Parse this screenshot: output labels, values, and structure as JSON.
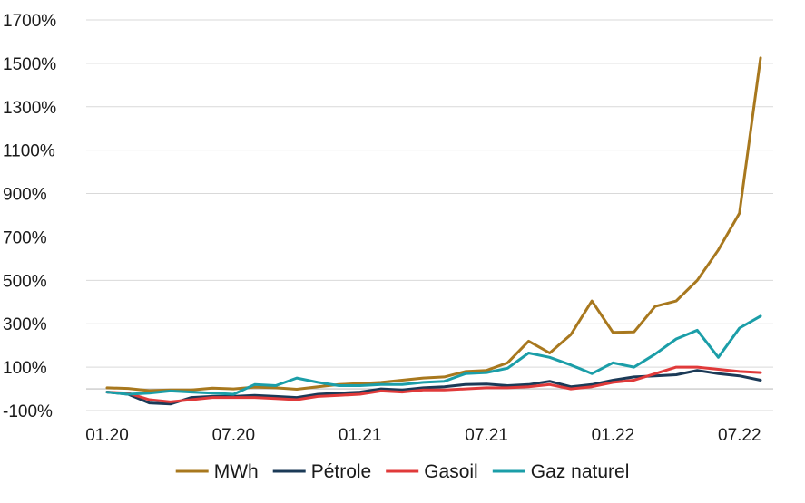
{
  "chart_data": {
    "type": "line",
    "title": "",
    "xlabel": "",
    "ylabel": "",
    "ylim": [
      -100,
      1700
    ],
    "yticks": [
      -100,
      100,
      300,
      500,
      700,
      900,
      1100,
      1300,
      1500,
      1700
    ],
    "ytick_labels": [
      "-100%",
      "100%",
      "300%",
      "500%",
      "700%",
      "900%",
      "1100%",
      "1300%",
      "1500%",
      "1700%"
    ],
    "x": [
      "01.20",
      "02.20",
      "03.20",
      "04.20",
      "05.20",
      "06.20",
      "07.20",
      "08.20",
      "09.20",
      "10.20",
      "11.20",
      "12.20",
      "01.21",
      "02.21",
      "03.21",
      "04.21",
      "05.21",
      "06.21",
      "07.21",
      "08.21",
      "09.21",
      "10.21",
      "11.21",
      "12.21",
      "01.22",
      "02.22",
      "03.22",
      "04.22",
      "05.22",
      "06.22",
      "07.22",
      "08.22"
    ],
    "xtick_labels": [
      {
        "index": 0,
        "label": "01.20"
      },
      {
        "index": 6,
        "label": "07.20"
      },
      {
        "index": 12,
        "label": "01.21"
      },
      {
        "index": 18,
        "label": "07.21"
      },
      {
        "index": 24,
        "label": "01.22"
      },
      {
        "index": 30,
        "label": "07.22"
      }
    ],
    "grid": true,
    "legend_position": "bottom",
    "series": [
      {
        "name": "MWh",
        "color": "#A8781E",
        "values": [
          5,
          2,
          -8,
          -5,
          -5,
          3,
          0,
          8,
          5,
          -2,
          10,
          20,
          25,
          30,
          40,
          50,
          55,
          80,
          85,
          120,
          220,
          165,
          250,
          405,
          260,
          262,
          380,
          405,
          500,
          640,
          810,
          1525
        ]
      },
      {
        "name": "Pétrole",
        "color": "#1B3A57",
        "values": [
          -15,
          -25,
          -65,
          -70,
          -40,
          -35,
          -35,
          -30,
          -35,
          -40,
          -25,
          -20,
          -15,
          0,
          -5,
          5,
          10,
          20,
          22,
          15,
          20,
          35,
          10,
          20,
          40,
          55,
          60,
          65,
          85,
          70,
          60,
          40
        ]
      },
      {
        "name": "Gasoil",
        "color": "#E03A3A",
        "values": [
          -15,
          -20,
          -50,
          -60,
          -50,
          -40,
          -40,
          -40,
          -45,
          -50,
          -35,
          -30,
          -25,
          -10,
          -15,
          -5,
          -5,
          0,
          5,
          5,
          10,
          20,
          0,
          10,
          30,
          40,
          70,
          100,
          100,
          90,
          80,
          75
        ]
      },
      {
        "name": "Gaz naturel",
        "color": "#1B9EA8",
        "values": [
          -15,
          -25,
          -20,
          -10,
          -15,
          -20,
          -25,
          20,
          15,
          50,
          30,
          15,
          15,
          20,
          20,
          30,
          35,
          70,
          75,
          95,
          165,
          145,
          110,
          70,
          120,
          100,
          160,
          230,
          270,
          145,
          280,
          335
        ]
      }
    ]
  }
}
